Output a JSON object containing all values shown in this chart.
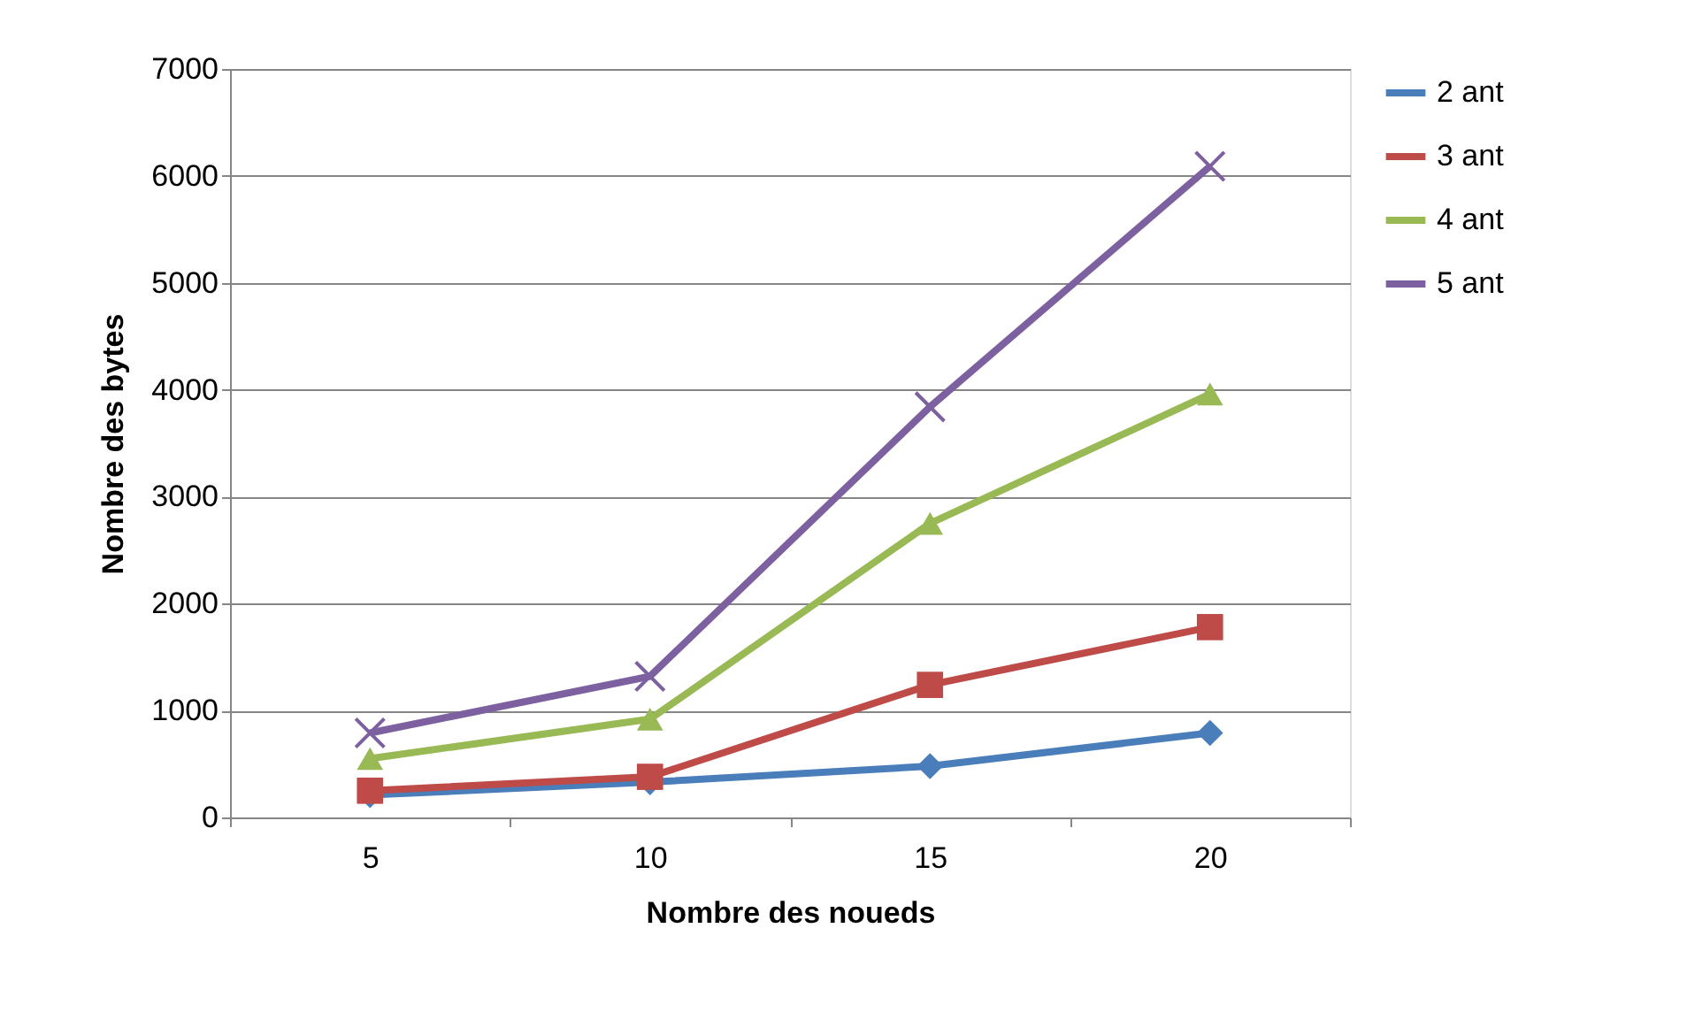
{
  "chart_data": {
    "type": "line",
    "xlabel": "Nombre des noueds",
    "ylabel": "Nombre des bytes",
    "categories": [
      "5",
      "10",
      "15",
      "20"
    ],
    "series": [
      {
        "name": "2 ant",
        "color": "#4a7ebb",
        "marker": "diamond",
        "values": [
          210,
          330,
          480,
          790
        ]
      },
      {
        "name": "3 ant",
        "color": "#be4b48",
        "marker": "square",
        "values": [
          250,
          380,
          1240,
          1780
        ]
      },
      {
        "name": "4 ant",
        "color": "#98b954",
        "marker": "triangle",
        "values": [
          550,
          920,
          2750,
          3960
        ]
      },
      {
        "name": "5 ant",
        "color": "#7d60a0",
        "marker": "cross",
        "values": [
          790,
          1320,
          3840,
          6090
        ]
      }
    ],
    "ylim": [
      0,
      7000
    ],
    "yticks": [
      0,
      1000,
      2000,
      3000,
      4000,
      5000,
      6000,
      7000
    ],
    "grid": "y",
    "legend": "right"
  }
}
